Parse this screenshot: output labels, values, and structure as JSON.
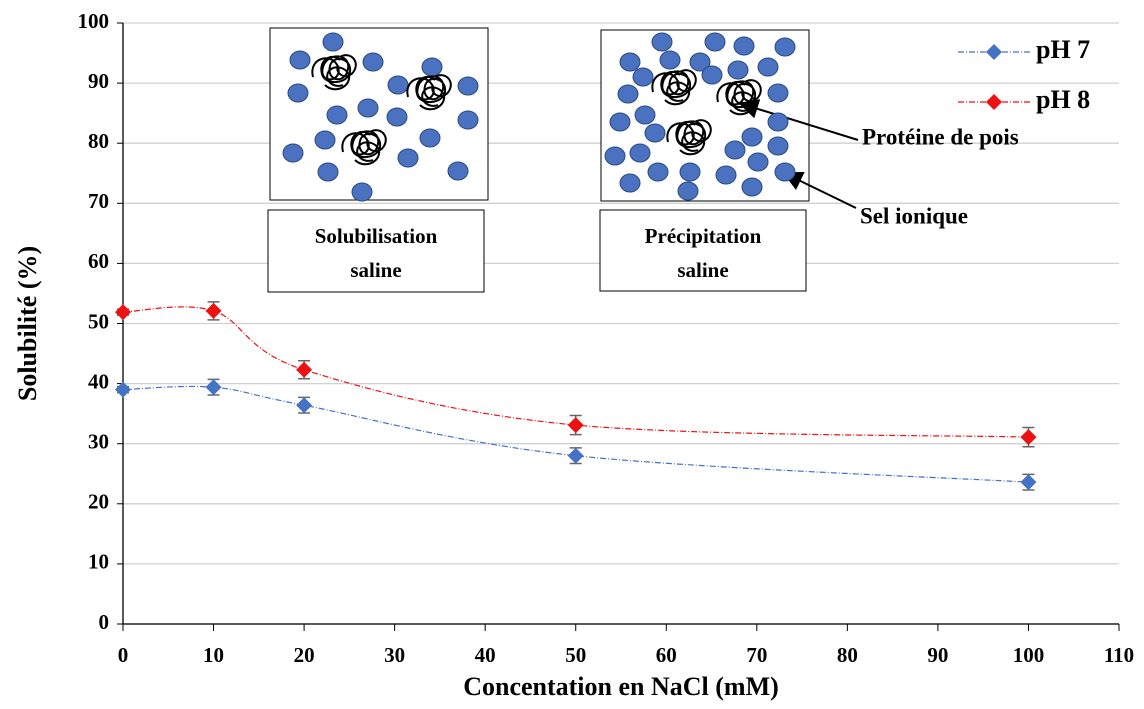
{
  "chart_data": {
    "type": "line",
    "xlabel": "Concentation en NaCl (mM)",
    "ylabel": "Solubilité (%)",
    "x": [
      0,
      10,
      20,
      50,
      100
    ],
    "xlim": [
      0,
      110
    ],
    "xticks": [
      0,
      10,
      20,
      30,
      40,
      50,
      60,
      70,
      80,
      90,
      100,
      110
    ],
    "ylim": [
      0,
      100
    ],
    "yticks": [
      0,
      10,
      20,
      30,
      40,
      50,
      60,
      70,
      80,
      90,
      100
    ],
    "grid": true,
    "legend": "upper right",
    "series": [
      {
        "name": "pH 7",
        "color": "#4472c4",
        "values": [
          39,
          39.4,
          36.4,
          28,
          23.6
        ],
        "errors": [
          0.5,
          1.3,
          1.3,
          1.3,
          1.3
        ]
      },
      {
        "name": "pH 8",
        "color": "#ee1111",
        "values": [
          51.9,
          52.1,
          42.3,
          33.1,
          31.1
        ],
        "errors": [
          0.5,
          1.5,
          1.5,
          1.6,
          1.6
        ]
      }
    ],
    "insets": [
      {
        "lines": [
          "Solubilisation",
          "saline"
        ]
      },
      {
        "lines": [
          "Précipitation",
          "saline"
        ]
      }
    ],
    "labels": [
      "Protéine de pois",
      "Sel ionique"
    ]
  }
}
